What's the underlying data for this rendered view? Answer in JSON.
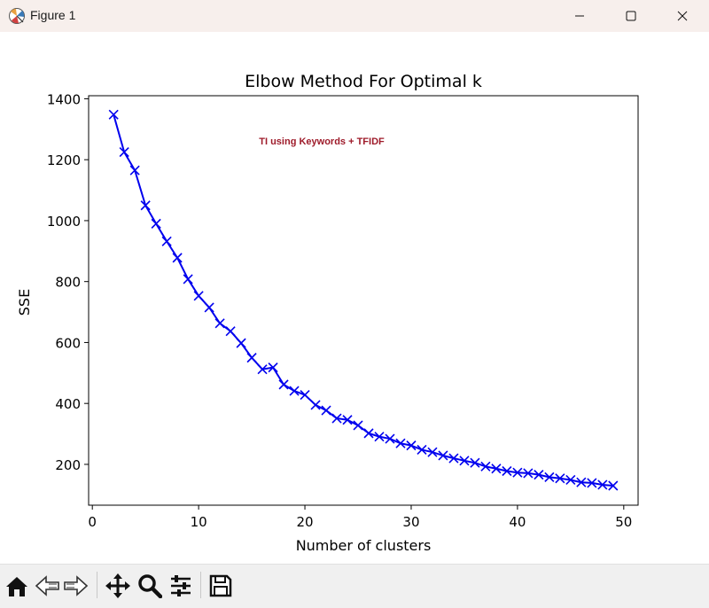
{
  "window": {
    "title": "Figure 1",
    "controls": [
      "minimize-icon",
      "maximize-icon",
      "close-icon"
    ]
  },
  "toolbar": {
    "buttons": [
      "home-icon",
      "back-icon",
      "forward-icon",
      "pan-icon",
      "zoom-icon",
      "configure-subplots-icon",
      "save-icon"
    ]
  },
  "colors": {
    "line": "#0000ee",
    "annotation": "#9e1b2a",
    "titlebar": "#f7efec",
    "toolbar": "#f0f0f0"
  },
  "chart_data": {
    "type": "line",
    "title": "Elbow Method For Optimal k",
    "xlabel": "Number of clusters",
    "ylabel": "SSE",
    "annotation": "TI using Keywords + TFIDF",
    "xlim": [
      -0.35,
      51.35
    ],
    "ylim": [
      66,
      1410
    ],
    "xticks": [
      0,
      10,
      20,
      30,
      40,
      50
    ],
    "yticks": [
      200,
      400,
      600,
      800,
      1000,
      1200,
      1400
    ],
    "marker": "x",
    "grid": false,
    "series": [
      {
        "x": [
          2,
          3,
          4,
          5,
          6,
          7,
          8,
          9,
          10,
          11,
          12,
          13,
          14,
          15,
          16,
          17,
          18,
          19,
          20,
          21,
          22,
          23,
          24,
          25,
          26,
          27,
          28,
          29,
          30,
          31,
          32,
          33,
          34,
          35,
          36,
          37,
          38,
          39,
          40,
          41,
          42,
          43,
          44,
          45,
          46,
          47,
          48,
          49
        ],
        "values": [
          1348,
          1225,
          1165,
          1050,
          990,
          932,
          878,
          808,
          753,
          715,
          663,
          637,
          598,
          550,
          512,
          518,
          462,
          441,
          428,
          395,
          377,
          351,
          346,
          328,
          302,
          291,
          284,
          269,
          262,
          248,
          240,
          229,
          220,
          212,
          205,
          193,
          186,
          178,
          173,
          171,
          166,
          158,
          154,
          149,
          141,
          139,
          133,
          130
        ]
      }
    ]
  }
}
